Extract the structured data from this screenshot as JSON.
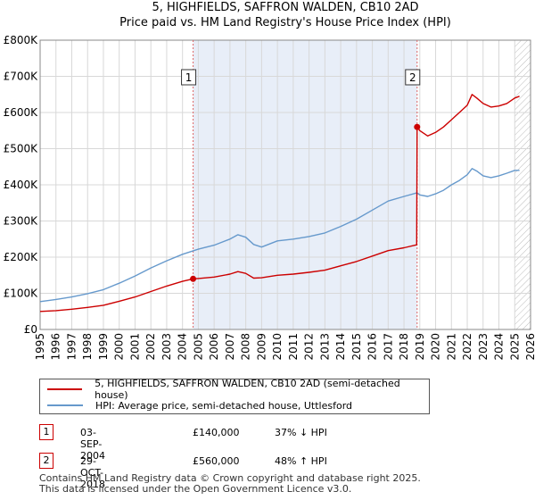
{
  "chart_data": {
    "type": "line",
    "title": "5, HIGHFIELDS, SAFFRON WALDEN, CB10 2AD",
    "subtitle": "Price paid vs. HM Land Registry's House Price Index (HPI)",
    "xlabel": "",
    "ylabel": "",
    "xlim": [
      1995,
      2026
    ],
    "ylim": [
      0,
      800000
    ],
    "x_ticks": [
      "1995",
      "1996",
      "1997",
      "1998",
      "1999",
      "2000",
      "2001",
      "2002",
      "2003",
      "2004",
      "2005",
      "2006",
      "2007",
      "2008",
      "2009",
      "2010",
      "2011",
      "2012",
      "2013",
      "2014",
      "2015",
      "2016",
      "2017",
      "2018",
      "2019",
      "2020",
      "2021",
      "2022",
      "2023",
      "2024",
      "2025",
      "2026"
    ],
    "y_ticks": [
      "£0",
      "£100K",
      "£200K",
      "£300K",
      "£400K",
      "£500K",
      "£600K",
      "£700K",
      "£800K"
    ],
    "y_tick_values": [
      0,
      100000,
      200000,
      300000,
      400000,
      500000,
      600000,
      700000,
      800000
    ],
    "grid": true,
    "shaded_regions": [
      [
        2004.67,
        2018.83
      ]
    ],
    "hatched_from": 2025.0,
    "series": [
      {
        "name": "5, HIGHFIELDS, SAFFRON WALDEN, CB10 2AD (semi-detached house)",
        "color": "#cc0000",
        "x": [
          1995,
          1996,
          1997,
          1998,
          1999,
          2000,
          2001,
          2002,
          2003,
          2004,
          2004.67,
          2005,
          2006,
          2007,
          2007.5,
          2008,
          2008.5,
          2009,
          2010,
          2011,
          2012,
          2013,
          2014,
          2015,
          2016,
          2017,
          2018,
          2018.8,
          2018.83,
          2019,
          2019.5,
          2020,
          2020.5,
          2021,
          2021.5,
          2022,
          2022.3,
          2022.6,
          2023,
          2023.5,
          2024,
          2024.5,
          2025,
          2025.3
        ],
        "values": [
          50000,
          52000,
          56000,
          61000,
          67000,
          78000,
          90000,
          105000,
          120000,
          133000,
          140000,
          141000,
          145000,
          153000,
          160000,
          155000,
          142000,
          143000,
          150000,
          153000,
          158000,
          164000,
          176000,
          188000,
          203000,
          218000,
          226000,
          234000,
          560000,
          550000,
          535000,
          545000,
          560000,
          580000,
          600000,
          620000,
          650000,
          640000,
          625000,
          615000,
          618000,
          625000,
          640000,
          645000
        ]
      },
      {
        "name": "HPI: Average price, semi-detached house, Uttlesford",
        "color": "#6699cc",
        "x": [
          1995,
          1996,
          1997,
          1998,
          1999,
          2000,
          2001,
          2002,
          2003,
          2004,
          2005,
          2006,
          2007,
          2007.5,
          2008,
          2008.5,
          2009,
          2010,
          2011,
          2012,
          2013,
          2014,
          2015,
          2016,
          2017,
          2018,
          2018.83,
          2019,
          2019.5,
          2020,
          2020.5,
          2021,
          2021.5,
          2022,
          2022.3,
          2022.6,
          2023,
          2023.5,
          2024,
          2024.5,
          2025,
          2025.3
        ],
        "values": [
          77000,
          83000,
          90000,
          99000,
          110000,
          128000,
          148000,
          170000,
          190000,
          208000,
          222000,
          233000,
          250000,
          262000,
          255000,
          235000,
          228000,
          245000,
          250000,
          257000,
          267000,
          285000,
          305000,
          330000,
          355000,
          368000,
          378000,
          372000,
          368000,
          375000,
          385000,
          400000,
          412000,
          428000,
          445000,
          438000,
          425000,
          420000,
          425000,
          432000,
          440000,
          440000
        ]
      }
    ],
    "annotations": [
      {
        "label": "1",
        "date": "03-SEP-2004",
        "x": 2004.67,
        "value": 140000
      },
      {
        "label": "2",
        "date": "29-OCT-2018",
        "x": 2018.83,
        "value": 560000
      }
    ]
  },
  "legend": {
    "entries": [
      {
        "label": "5, HIGHFIELDS, SAFFRON WALDEN, CB10 2AD (semi-detached house)",
        "color": "#cc0000"
      },
      {
        "label": "HPI: Average price, semi-detached house, Uttlesford",
        "color": "#6699cc"
      }
    ]
  },
  "transactions": [
    {
      "num": "1",
      "date": "03-SEP-2004",
      "price": "£140,000",
      "hpi": "37% ↓ HPI"
    },
    {
      "num": "2",
      "date": "29-OCT-2018",
      "price": "£560,000",
      "hpi": "48% ↑ HPI"
    }
  ],
  "footer": {
    "line1": "Contains HM Land Registry data © Crown copyright and database right 2025.",
    "line2": "This data is licensed under the Open Government Licence v3.0."
  }
}
